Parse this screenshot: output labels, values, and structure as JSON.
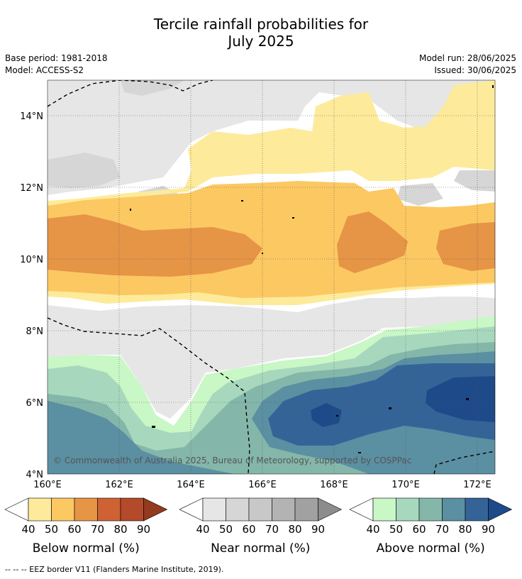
{
  "title": {
    "line1": "Tercile rainfall probabilities for",
    "line2": "July 2025"
  },
  "meta": {
    "base_period": "Base period: 1981-2018",
    "model": "Model: ACCESS-S2",
    "model_run": "Model run: 28/06/2025",
    "issued": "Issued: 30/06/2025"
  },
  "map": {
    "copyright": "© Commonwealth of Australia 2025, Bureau of Meteorology, supported by COSPPac",
    "lon_labels": [
      "160°E",
      "162°E",
      "164°E",
      "166°E",
      "168°E",
      "170°E",
      "172°E"
    ],
    "lat_labels": [
      "14°N",
      "12°N",
      "10°N",
      "8°N",
      "6°N",
      "4°N"
    ]
  },
  "legends": [
    {
      "name": "Below normal (%)",
      "ticks": [
        "40",
        "50",
        "60",
        "70",
        "80",
        "90"
      ],
      "colors": [
        "#fdeb9b",
        "#fcc862",
        "#e69446",
        "#cf6233",
        "#b34a2a",
        "#933a1f"
      ]
    },
    {
      "name": "Near normal (%)",
      "ticks": [
        "40",
        "50",
        "60",
        "70",
        "80",
        "90"
      ],
      "colors": [
        "#e6e6e6",
        "#d6d6d6",
        "#c8c8c8",
        "#b3b3b3",
        "#a1a1a1",
        "#8c8c8c"
      ]
    },
    {
      "name": "Above normal (%)",
      "ticks": [
        "40",
        "50",
        "60",
        "70",
        "80",
        "90"
      ],
      "colors": [
        "#c9f7c5",
        "#a7d8be",
        "#84b7aa",
        "#5b8fa2",
        "#346497",
        "#1e4a8a"
      ]
    }
  ],
  "footnote": "--  --  -- EEZ border V11 (Flanders Marine Institute, 2019)."
}
